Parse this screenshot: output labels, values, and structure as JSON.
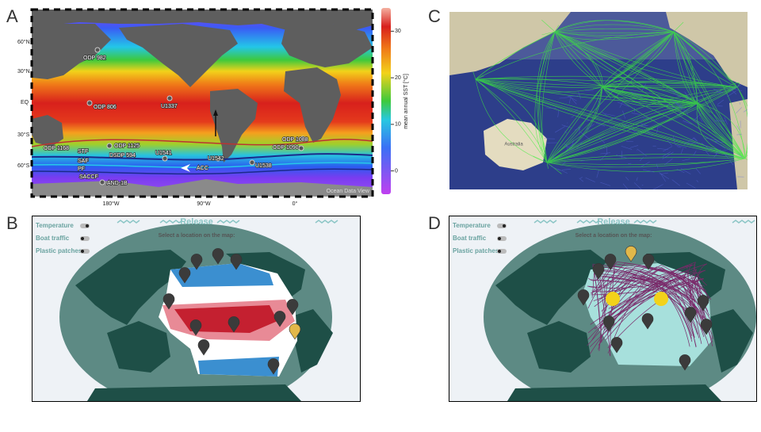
{
  "panels": {
    "a": {
      "letter": "A",
      "lat_labels": [
        "60°N",
        "30°N",
        "EQ",
        "30°S",
        "60°S"
      ],
      "lon_labels": [
        "180°W",
        "90°W",
        "0°"
      ],
      "sites": [
        "ODP 982",
        "ODP 806",
        "U1337",
        "ODP 1168",
        "ODP 1125",
        "DSDP 594",
        "U1541",
        "U1542",
        "U1538",
        "ODP 1088",
        "ODP 1090",
        "AND-1B"
      ],
      "fronts": [
        "STF",
        "SAF",
        "PF",
        "SACCF",
        "ACC"
      ],
      "colorbar": {
        "label": "mean annual SST [°C]",
        "lim": [
          -5,
          35
        ],
        "ticks": [
          0,
          10,
          20,
          30
        ]
      },
      "credit": "Ocean Data View"
    },
    "b": {
      "letter": "B",
      "title": "Release",
      "toggles": [
        "Temperature",
        "Boat traffic",
        "Plastic patches"
      ],
      "prompt": "Select a location on the map:"
    },
    "c": {
      "letter": "C",
      "labels": [
        "Australia"
      ]
    },
    "d": {
      "letter": "D",
      "title": "Release",
      "toggles": [
        "Temperature",
        "Boat traffic",
        "Plastic patches"
      ],
      "prompt": "Select a location on the map:"
    }
  }
}
